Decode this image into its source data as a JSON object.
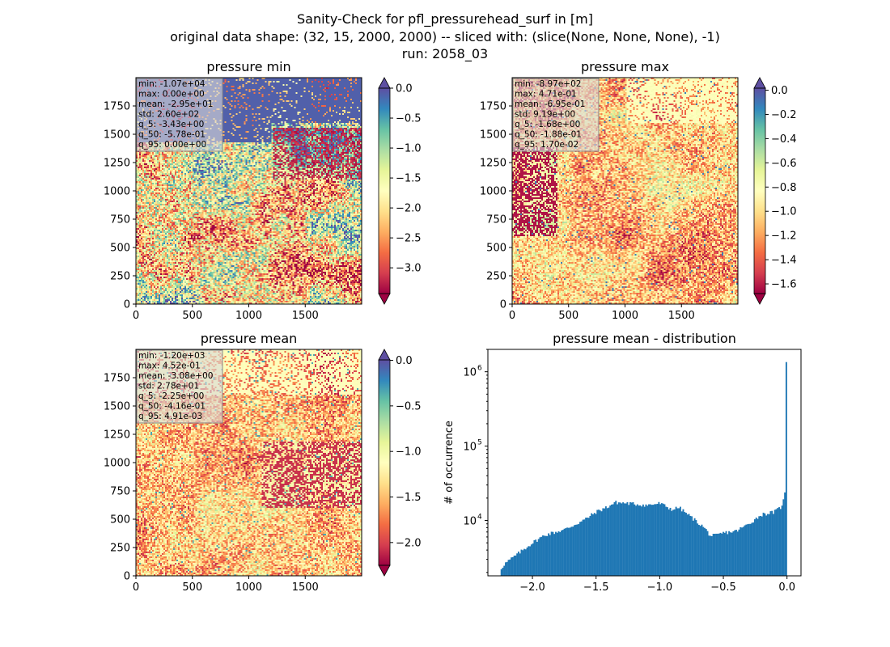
{
  "figure": {
    "title_lines": [
      "Sanity-Check for pfl_pressurehead_surf in [m]",
      "original data shape: (32, 15, 2000, 2000) -- sliced with: (slice(None, None, None), -1)",
      "run: 2058_03"
    ]
  },
  "colors": {
    "spectral": [
      "#9e0142",
      "#d53e4f",
      "#f46d43",
      "#fdae61",
      "#fee08b",
      "#ffffbf",
      "#e6f598",
      "#abdda4",
      "#66c2a5",
      "#3288bd",
      "#5e4fa2"
    ],
    "hist_bar": "#1f77b4",
    "axes": "#000000"
  },
  "chart_data": [
    {
      "type": "heatmap",
      "title": "pressure min",
      "colormap": "Spectral",
      "xlim": [
        0,
        2000
      ],
      "ylim": [
        0,
        2000
      ],
      "xticks": [
        0,
        500,
        1000,
        1500
      ],
      "yticks": [
        0,
        250,
        500,
        750,
        1000,
        1250,
        1500,
        1750
      ],
      "colorbar": {
        "vmin": -3.43,
        "vmax": 0.0,
        "ticks": [
          "0.0",
          "−0.5",
          "−1.0",
          "−1.5",
          "−2.0",
          "−2.5",
          "−3.0"
        ],
        "tick_values": [
          0,
          -0.5,
          -1.0,
          -1.5,
          -2.0,
          -2.5,
          -3.0
        ],
        "extend": "both"
      },
      "stats": [
        "min: -1.07e+04",
        "max: 0.00e+00",
        "mean: -2.95e+01",
        "std: 2.60e+02",
        "q_5: -3.43e+00",
        "q_50: -5.78e-01",
        "q_95: 0.00e+00"
      ]
    },
    {
      "type": "heatmap",
      "title": "pressure max",
      "colormap": "Spectral",
      "xlim": [
        0,
        2000
      ],
      "ylim": [
        0,
        2000
      ],
      "xticks": [
        0,
        500,
        1000,
        1500
      ],
      "yticks": [
        0,
        250,
        500,
        750,
        1000,
        1250,
        1500,
        1750
      ],
      "colorbar": {
        "vmin": -1.68,
        "vmax": 0.017,
        "ticks": [
          "0.0",
          "−0.2",
          "−0.4",
          "−0.6",
          "−0.8",
          "−1.0",
          "−1.2",
          "−1.4",
          "−1.6"
        ],
        "tick_values": [
          0,
          -0.2,
          -0.4,
          -0.6,
          -0.8,
          -1.0,
          -1.2,
          -1.4,
          -1.6
        ],
        "extend": "both"
      },
      "stats": [
        "min: -8.97e+02",
        "max: 4.71e-01",
        "mean: -6.95e-01",
        "std: 9.19e+00",
        "q_5: -1.68e+00",
        "q_50: -1.88e-01",
        "q_95: 1.70e-02"
      ]
    },
    {
      "type": "heatmap",
      "title": "pressure mean",
      "colormap": "Spectral",
      "xlim": [
        0,
        2000
      ],
      "ylim": [
        0,
        2000
      ],
      "xticks": [
        0,
        500,
        1000,
        1500
      ],
      "yticks": [
        0,
        250,
        500,
        750,
        1000,
        1250,
        1500,
        1750
      ],
      "colorbar": {
        "vmin": -2.25,
        "vmax": 0.0049,
        "ticks": [
          "0.0",
          "−0.5",
          "−1.0",
          "−1.5",
          "−2.0"
        ],
        "tick_values": [
          0,
          -0.5,
          -1.0,
          -1.5,
          -2.0
        ],
        "extend": "both"
      },
      "stats": [
        "min: -1.20e+03",
        "max: 4.52e-01",
        "mean: -3.08e+00",
        "std: 2.78e+01",
        "q_5: -2.25e+00",
        "q_50: -4.16e-01",
        "q_95: 4.91e-03"
      ]
    },
    {
      "type": "bar",
      "title": "pressure mean - distribution",
      "ylabel": "# of occurrence",
      "yscale": "log",
      "xlim": [
        -2.35,
        0.11
      ],
      "ylim": [
        1800,
        2000000
      ],
      "xticks": [
        -2.0,
        -1.5,
        -1.0,
        -0.5,
        0.0
      ],
      "xtick_labels": [
        "−2.0",
        "−1.5",
        "−1.0",
        "−0.5",
        "0.0"
      ],
      "yticks": [
        10000,
        100000,
        1000000
      ],
      "ytick_labels": [
        "10",
        "10",
        "10"
      ],
      "ytick_exponents": [
        "4",
        "5",
        "6"
      ],
      "bins": {
        "start": -2.25,
        "end": 0.0,
        "count": 200
      },
      "anchors_x": [
        -2.25,
        -2.22,
        -2.15,
        -2.0,
        -1.9,
        -1.75,
        -1.6,
        -1.5,
        -1.4,
        -1.35,
        -1.25,
        -1.1,
        -1.0,
        -0.9,
        -0.85,
        -0.75,
        -0.65,
        -0.6,
        -0.55,
        -0.5,
        -0.4,
        -0.3,
        -0.2,
        -0.1,
        -0.05,
        -0.02,
        -0.01,
        0.0
      ],
      "anchors_y": [
        2200,
        2600,
        3200,
        5000,
        6400,
        7500,
        10000,
        13000,
        15500,
        17500,
        17000,
        16000,
        17000,
        14000,
        15000,
        11000,
        8000,
        6200,
        6300,
        6800,
        7200,
        9000,
        12000,
        13000,
        15000,
        20000,
        35000,
        1350000
      ]
    }
  ]
}
